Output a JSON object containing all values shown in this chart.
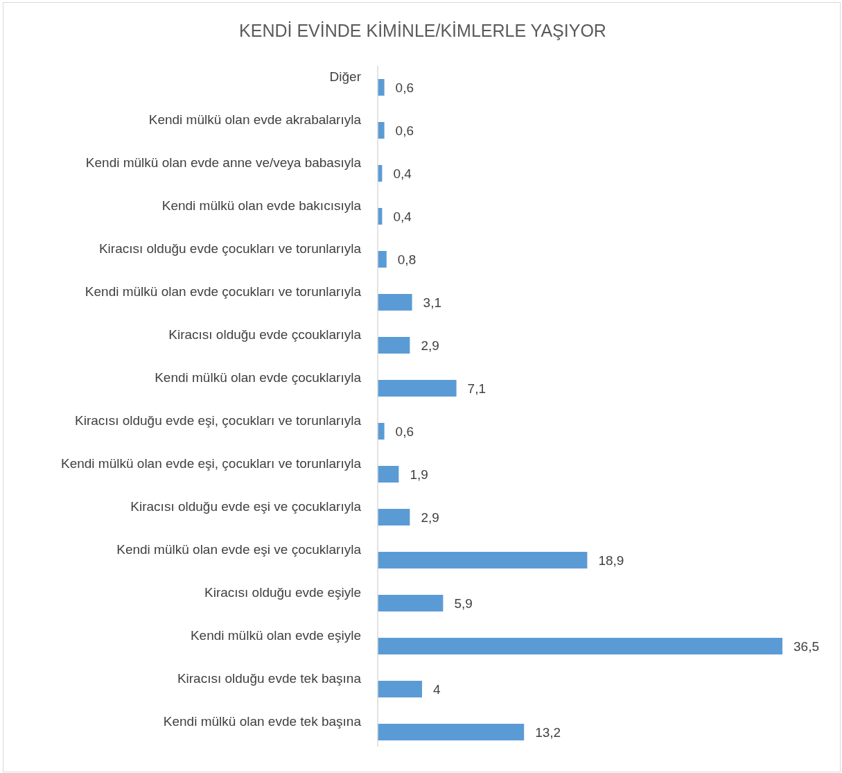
{
  "chart_data": {
    "type": "bar",
    "orientation": "horizontal",
    "title": "KENDİ EVİNDE KİMİNLE/KİMLERLE YAŞIYOR",
    "categories": [
      "Diğer",
      "Kendi mülkü olan evde akrabalarıyla",
      "Kendi mülkü olan evde anne ve/veya babasıyla",
      "Kendi mülkü olan evde bakıcısıyla",
      "Kiracısı olduğu evde çocukları ve torunlarıyla",
      "Kendi mülkü olan evde çocukları ve torunlarıyla",
      "Kiracısı olduğu evde çcouklarıyla",
      "Kendi mülkü olan evde çocuklarıyla",
      "Kiracısı olduğu evde eşi, çocukları ve torunlarıyla",
      "Kendi mülkü olan evde eşi, çocukları ve torunlarıyla",
      "Kiracısı olduğu evde eşi ve çocuklarıyla",
      "Kendi mülkü olan evde eşi ve çocuklarıyla",
      "Kiracısı olduğu evde eşiyle",
      "Kendi mülkü olan evde eşiyle",
      "Kiracısı olduğu evde tek başına",
      "Kendi mülkü olan evde tek başına"
    ],
    "values": [
      0.6,
      0.6,
      0.4,
      0.4,
      0.8,
      3.1,
      2.9,
      7.1,
      0.6,
      1.9,
      2.9,
      18.9,
      5.9,
      36.5,
      4,
      13.2
    ],
    "value_labels": [
      "0,6",
      "0,6",
      "0,4",
      "0,4",
      "0,8",
      "3,1",
      "2,9",
      "7,1",
      "0,6",
      "1,9",
      "2,9",
      "18,9",
      "5,9",
      "36,5",
      "4",
      "13,2"
    ],
    "color": "#5b9bd5"
  }
}
